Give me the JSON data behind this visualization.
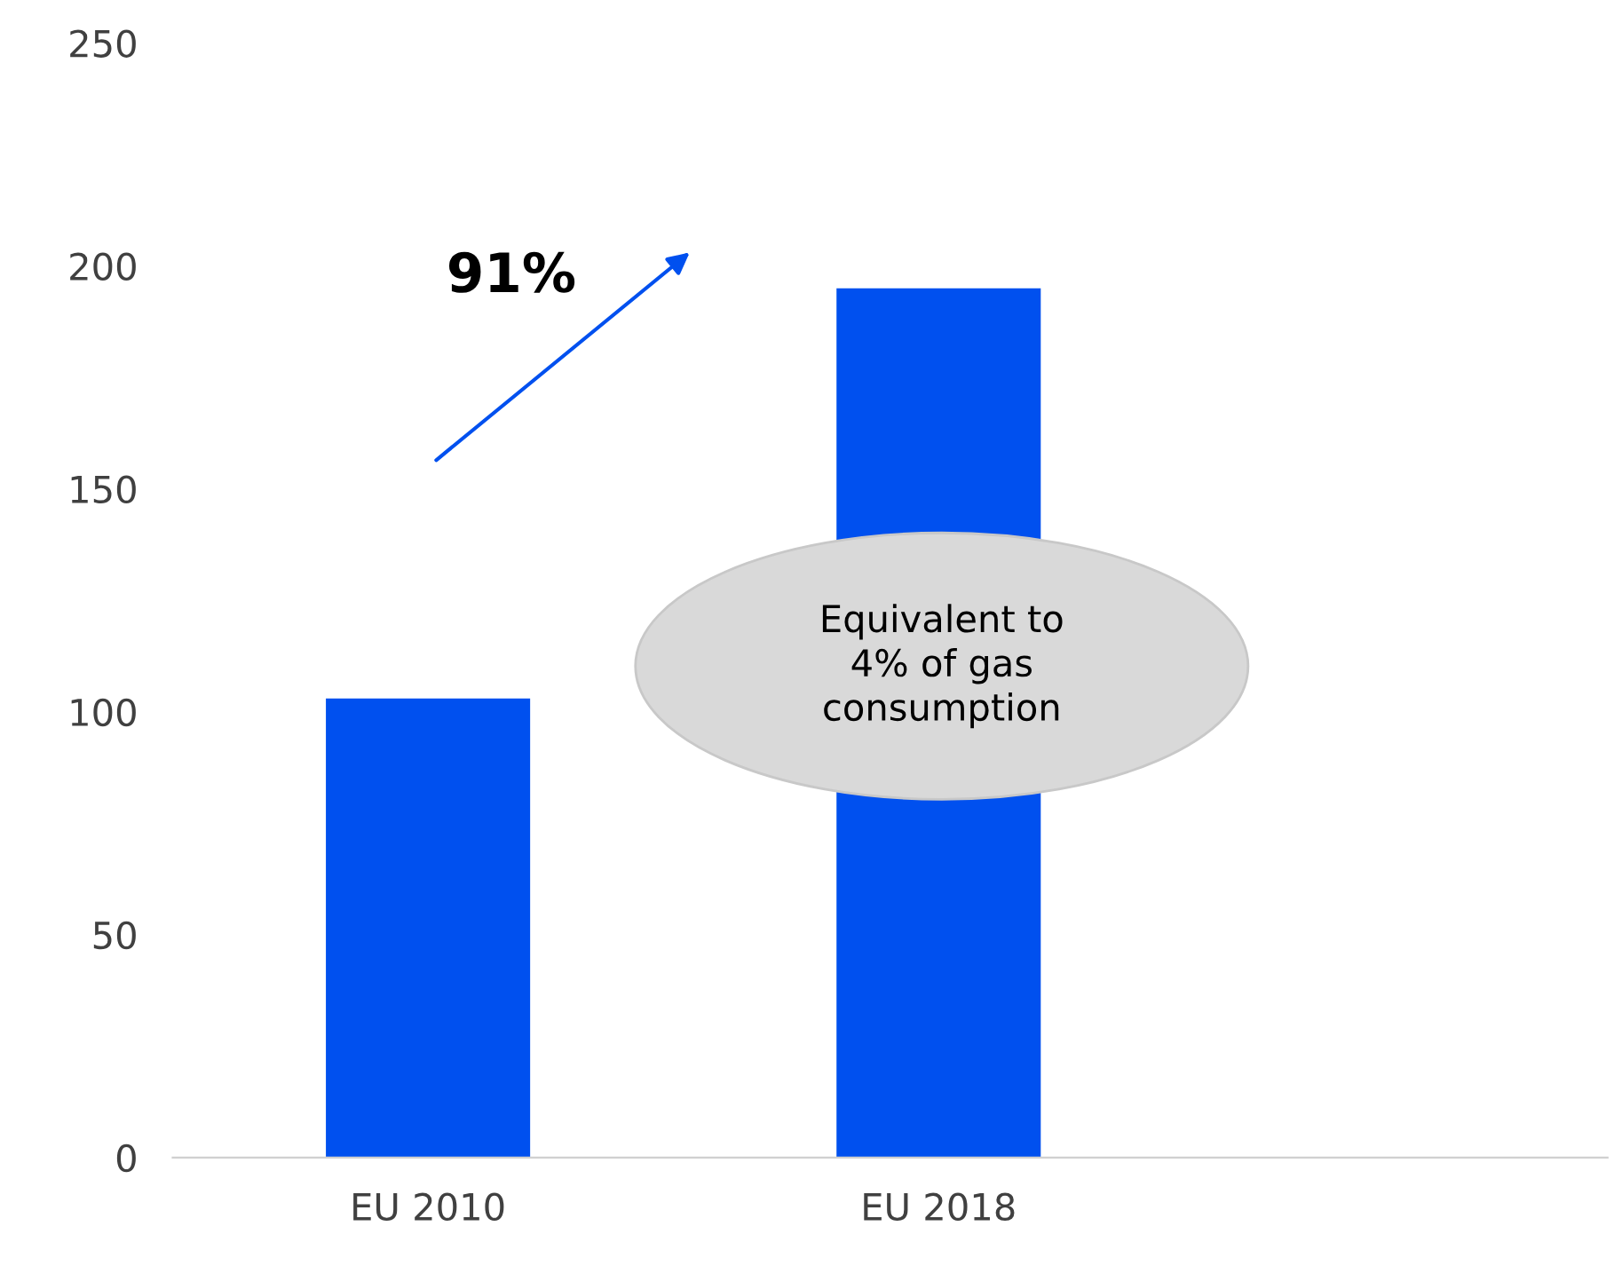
{
  "chart_data": {
    "type": "bar",
    "categories": [
      "EU 2010",
      "EU 2018",
      null
    ],
    "values": [
      103,
      195,
      null
    ],
    "color": "#0050ef",
    "ylim": [
      0,
      250
    ],
    "yticks": [
      0,
      50,
      100,
      150,
      200,
      250
    ],
    "grid": false,
    "annotations": [
      "91%",
      "Equivalent to\n4% of gas\nconsumption"
    ]
  }
}
